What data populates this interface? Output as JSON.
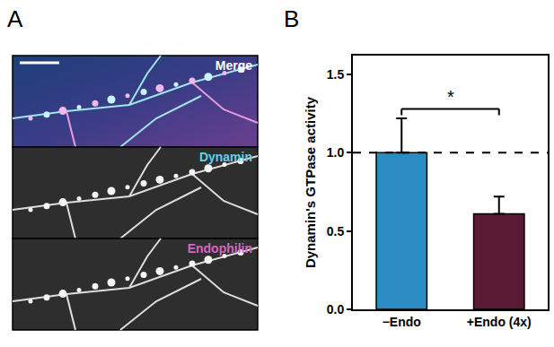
{
  "panel_a": {
    "label": "A",
    "channels": [
      "Merge",
      "Dynamin",
      "Endophilin"
    ],
    "channel_colors": [
      "#ffffff",
      "#5fd3e6",
      "#d466c4"
    ]
  },
  "chart_data": {
    "panel_label": "B",
    "type": "bar",
    "categories": [
      "−Endo",
      "+Endo (4x)"
    ],
    "values": [
      1.0,
      0.61
    ],
    "errors": [
      0.22,
      0.11
    ],
    "colors": [
      "#2b8cc4",
      "#5b1a33"
    ],
    "y_label": "Dynamin's GTPase activity",
    "ylim": [
      0,
      1.62
    ],
    "yticks": [
      {
        "value": 0,
        "label": "0.0"
      },
      0.5,
      {
        "value": 1,
        "label": "1.0"
      },
      1.5
    ],
    "reference_line": 1.0,
    "annotations": [
      {
        "text": "*",
        "between": [
          0,
          1
        ],
        "y": 1.28
      }
    ],
    "grid": false
  }
}
